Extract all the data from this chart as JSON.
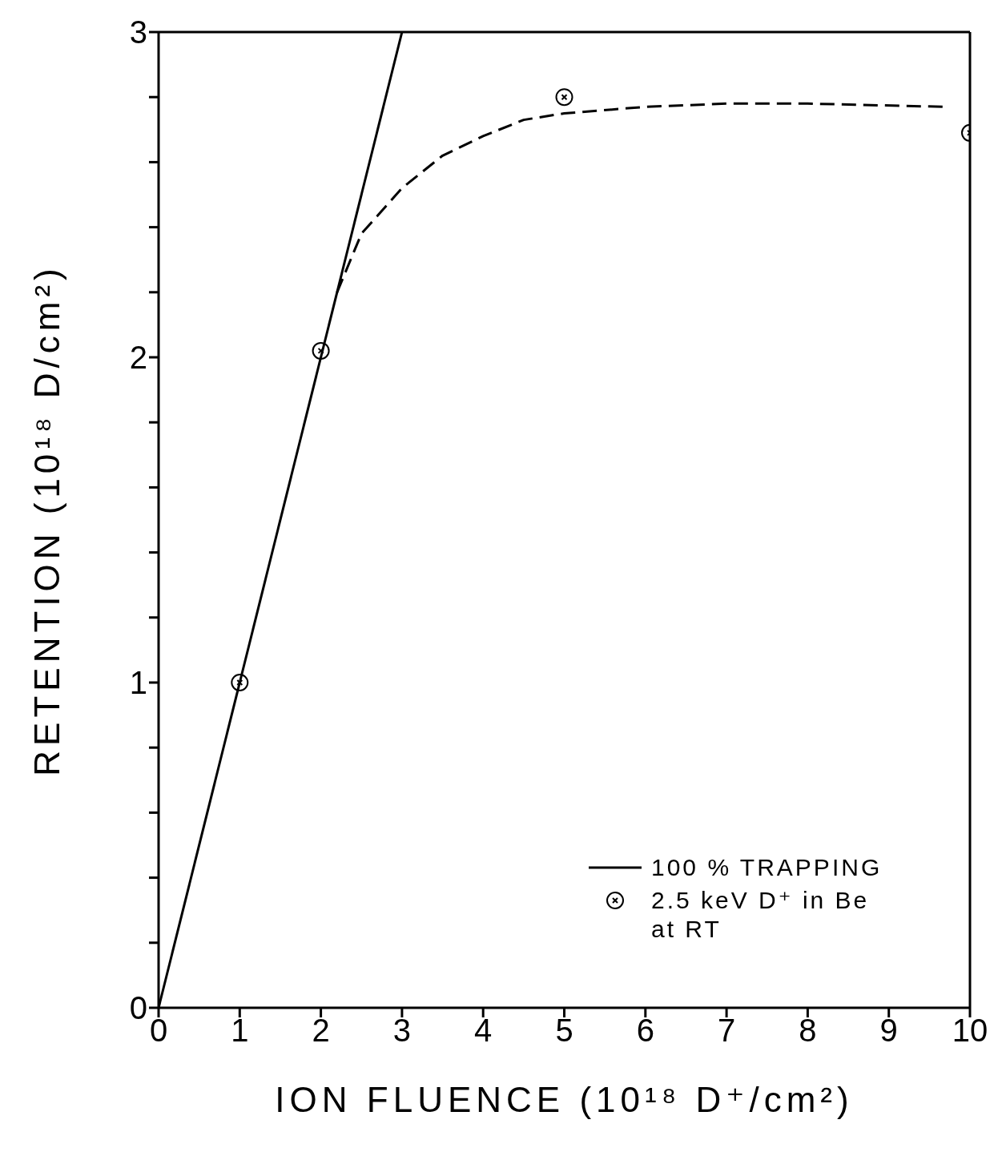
{
  "chart_data": {
    "type": "line",
    "xlabel": "ION FLUENCE (10¹⁸ D⁺/cm²)",
    "ylabel": "RETENTION (10¹⁸ D/cm²)",
    "xlim": [
      0,
      10
    ],
    "ylim": [
      0,
      3
    ],
    "xticks": [
      0,
      1,
      2,
      3,
      4,
      5,
      6,
      7,
      8,
      9,
      10
    ],
    "yticks": [
      0,
      {
        "value": 0.2,
        "label": null
      },
      {
        "value": 0.4,
        "label": null
      },
      {
        "value": 0.6,
        "label": null
      },
      {
        "value": 0.8,
        "label": null
      },
      1,
      {
        "value": 1.2,
        "label": null
      },
      {
        "value": 1.4,
        "label": null
      },
      {
        "value": 1.6,
        "label": null
      },
      {
        "value": 1.8,
        "label": null
      },
      2,
      {
        "value": 2.2,
        "label": null
      },
      {
        "value": 2.4,
        "label": null
      },
      {
        "value": 2.6,
        "label": null
      },
      {
        "value": 2.8,
        "label": null
      },
      3
    ],
    "legend": "bottom right",
    "series": [
      {
        "name": "100 % TRAPPING",
        "color": "#000000",
        "line_style": "solid",
        "marker": "none",
        "x": [
          0,
          3
        ],
        "values": [
          0,
          3
        ]
      },
      {
        "color": "#000000",
        "line_style": "dashed",
        "marker": "none",
        "x": [
          2.2,
          2.5,
          3,
          3.5,
          4,
          4.5,
          5,
          6,
          7,
          8,
          9.7
        ],
        "values": [
          2.2,
          2.38,
          2.52,
          2.62,
          2.68,
          2.73,
          2.75,
          2.77,
          2.78,
          2.78,
          2.77
        ]
      },
      {
        "name": "2.5 keV D⁺ in Be at RT",
        "type": "scatter",
        "color": "#000000",
        "marker": "circle",
        "x": [
          1,
          2,
          5,
          10
        ],
        "values": [
          1.0,
          2.02,
          2.8,
          2.69
        ]
      }
    ]
  }
}
